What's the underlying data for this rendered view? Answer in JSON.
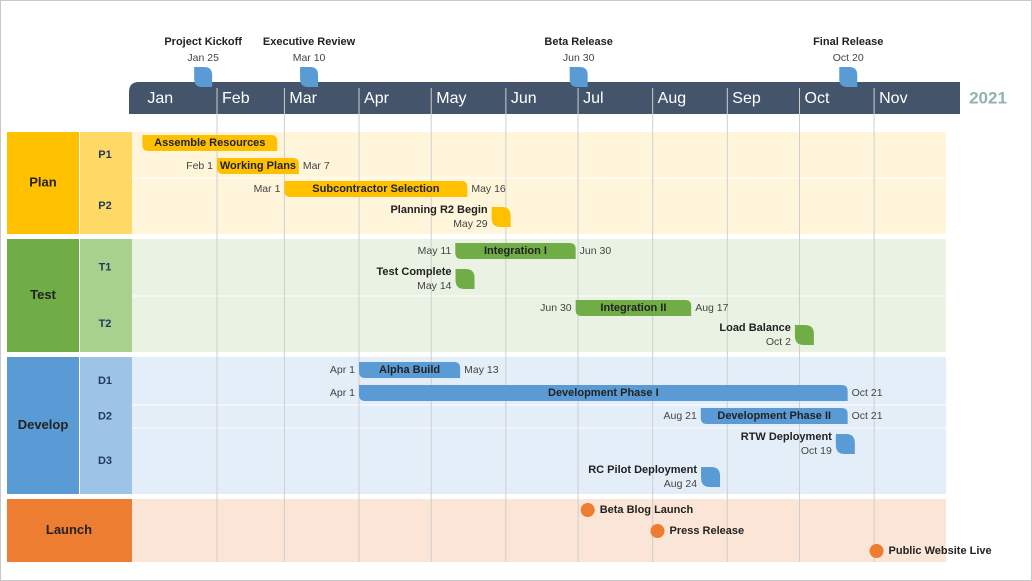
{
  "chart_data": {
    "type": "gantt",
    "year": "2021",
    "months": [
      "Jan",
      "Feb",
      "Mar",
      "Apr",
      "May",
      "Jun",
      "Jul",
      "Aug",
      "Sep",
      "Oct",
      "Nov"
    ],
    "milestones": [
      {
        "label": "Project Kickoff",
        "date": "Jan 25"
      },
      {
        "label": "Executive Review",
        "date": "Mar 10"
      },
      {
        "label": "Beta Release",
        "date": "Jun 30"
      },
      {
        "label": "Final Release",
        "date": "Oct 20"
      }
    ],
    "lanes": [
      {
        "name": "Plan",
        "color": "#ffc000",
        "light": "#ffd966",
        "bg": "#fff5da",
        "rows": [
          {
            "name": "P1",
            "items": [
              {
                "kind": "bar",
                "label": "Assemble Resources",
                "start_day": 0,
                "end_day": 56
              },
              {
                "kind": "bar",
                "label": "Working Plans",
                "start": "Feb 1",
                "end": "Mar 7"
              }
            ]
          },
          {
            "name": "P2",
            "items": [
              {
                "kind": "bar",
                "label": "Subcontractor Selection",
                "start": "Mar 1",
                "end": "May 16"
              },
              {
                "kind": "milestone",
                "label": "Planning R2 Begin",
                "date": "May 29"
              }
            ]
          }
        ]
      },
      {
        "name": "Test",
        "color": "#70ad47",
        "light": "#a9d18e",
        "bg": "#eaf2e3",
        "rows": [
          {
            "name": "T1",
            "items": [
              {
                "kind": "bar",
                "label": "Integration I",
                "start": "May 11",
                "end": "Jun 30"
              },
              {
                "kind": "milestone",
                "label": "Test Complete",
                "date": "May 14"
              }
            ]
          },
          {
            "name": "T2",
            "items": [
              {
                "kind": "bar",
                "label": "Integration II",
                "start": "Jun 30",
                "end": "Aug 17"
              },
              {
                "kind": "milestone",
                "label": "Load Balance",
                "date": "Oct 2"
              }
            ]
          }
        ]
      },
      {
        "name": "Develop",
        "color": "#5b9bd5",
        "light": "#9dc3e6",
        "bg": "#e4eef8",
        "rows": [
          {
            "name": "D1",
            "items": [
              {
                "kind": "bar",
                "label": "Alpha Build",
                "start": "Apr 1",
                "end": "May 13"
              },
              {
                "kind": "bar",
                "label": "Development Phase I",
                "start": "Apr 1",
                "end": "Oct 21"
              }
            ]
          },
          {
            "name": "D2",
            "items": [
              {
                "kind": "bar",
                "label": "Development Phase II",
                "start": "Aug 21",
                "end": "Oct 21"
              }
            ]
          },
          {
            "name": "D3",
            "items": [
              {
                "kind": "milestone",
                "label": "RTW Deployment",
                "date": "Oct 19"
              },
              {
                "kind": "milestone",
                "label": "RC Pilot Deployment",
                "date": "Aug 24"
              }
            ]
          }
        ]
      },
      {
        "name": "Launch",
        "color": "#ed7d31",
        "bg": "#fbe5d6",
        "rows": [
          {
            "items": [
              {
                "kind": "dot",
                "label": "Beta Blog Launch",
                "day": 185
              },
              {
                "kind": "dot",
                "label": "Press Release",
                "day": 214
              },
              {
                "kind": "dot",
                "label": "Public Website Live",
                "day": 305
              }
            ]
          }
        ]
      }
    ]
  }
}
